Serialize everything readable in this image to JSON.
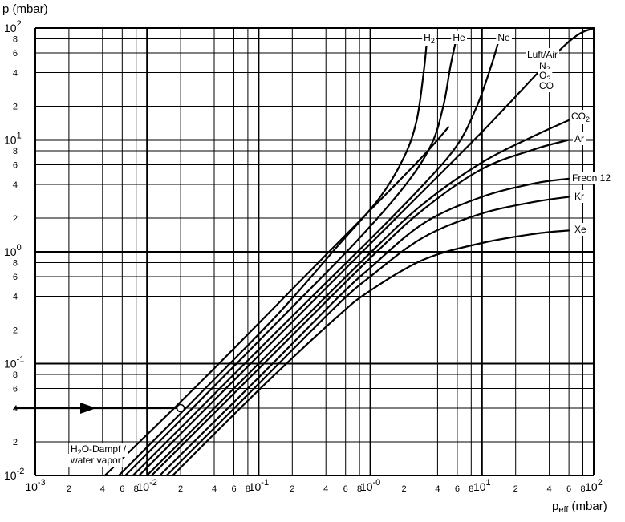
{
  "chart_data": {
    "type": "line",
    "x_scale": "log",
    "y_scale": "log",
    "xlim": [
      0.001,
      100
    ],
    "ylim": [
      0.01,
      100
    ],
    "grid": true,
    "ylabel": "p (mbar)",
    "xlabel_main": "p",
    "xlabel_sub": "eff",
    "xlabel_unit": " (mbar)",
    "y_decades": [
      {
        "value": 0.01,
        "base": "10",
        "exp": "-2"
      },
      {
        "value": 0.1,
        "base": "10",
        "exp": "-1"
      },
      {
        "value": 1,
        "base": "10",
        "exp": "0"
      },
      {
        "value": 10,
        "base": "10",
        "exp": "1"
      },
      {
        "value": 100,
        "base": "10",
        "exp": "2"
      }
    ],
    "y_minor": [
      {
        "mult": 2,
        "label": "2"
      },
      {
        "mult": 4,
        "label": "4"
      },
      {
        "mult": 6,
        "label": "6"
      },
      {
        "mult": 8,
        "label": "8"
      }
    ],
    "x_decades": [
      {
        "value": 0.001,
        "base": "10",
        "exp": "-3"
      },
      {
        "value": 0.01,
        "base": "10",
        "exp": "-2"
      },
      {
        "value": 0.1,
        "base": "10",
        "exp": "-1"
      },
      {
        "value": 1,
        "base": "10",
        "exp": "-0"
      },
      {
        "value": 10,
        "base": "10",
        "exp": "1"
      },
      {
        "value": 100,
        "base": "10",
        "exp": "2"
      }
    ],
    "x_minor": [
      {
        "mult": 2,
        "label": "2"
      },
      {
        "mult": 4,
        "label": "4"
      },
      {
        "mult": 6,
        "label": "6"
      },
      {
        "mult": 8,
        "label": "8"
      }
    ],
    "series": [
      {
        "name": "H2O-Dampf / water vapor",
        "points": [
          [
            0.0042,
            0.01
          ],
          [
            0.03,
            0.068
          ],
          [
            0.3,
            0.7
          ],
          [
            2.5,
            6
          ],
          [
            5,
            13
          ]
        ]
      },
      {
        "name": "H2",
        "points": [
          [
            0.0056,
            0.01
          ],
          [
            0.03,
            0.054
          ],
          [
            0.15,
            0.28
          ],
          [
            0.5,
            1.1
          ],
          [
            1.2,
            3
          ],
          [
            2,
            7
          ],
          [
            2.6,
            15
          ],
          [
            3,
            40
          ],
          [
            3.2,
            75
          ]
        ]
      },
      {
        "name": "He",
        "points": [
          [
            0.0064,
            0.01
          ],
          [
            0.03,
            0.047
          ],
          [
            0.15,
            0.24
          ],
          [
            0.7,
            1.15
          ],
          [
            2,
            3.8
          ],
          [
            3.5,
            9
          ],
          [
            4.5,
            20
          ],
          [
            5.2,
            45
          ],
          [
            5.8,
            75
          ]
        ]
      },
      {
        "name": "Ne",
        "points": [
          [
            0.0075,
            0.01
          ],
          [
            0.03,
            0.04
          ],
          [
            0.15,
            0.2
          ],
          [
            1,
            1.3
          ],
          [
            3,
            4
          ],
          [
            6,
            9
          ],
          [
            9,
            20
          ],
          [
            12,
            45
          ],
          [
            14,
            75
          ]
        ]
      },
      {
        "name": "Luft/Air N2 O2 CO",
        "points": [
          [
            0.0085,
            0.01
          ],
          [
            0.1,
            0.118
          ],
          [
            1,
            1.18
          ],
          [
            10,
            11.8
          ],
          [
            55,
            70
          ],
          [
            100,
            100
          ]
        ]
      },
      {
        "name": "CO2",
        "points": [
          [
            0.01,
            0.01
          ],
          [
            0.1,
            0.1
          ],
          [
            1,
            0.98
          ],
          [
            3,
            2.7
          ],
          [
            10,
            6.3
          ],
          [
            30,
            11
          ],
          [
            60,
            15
          ]
        ]
      },
      {
        "name": "Ar",
        "points": [
          [
            0.011,
            0.01
          ],
          [
            0.1,
            0.09
          ],
          [
            1,
            0.88
          ],
          [
            3,
            2.4
          ],
          [
            10,
            5.5
          ],
          [
            30,
            8.3
          ],
          [
            60,
            10
          ]
        ]
      },
      {
        "name": "Freon 12",
        "points": [
          [
            0.013,
            0.01
          ],
          [
            0.1,
            0.075
          ],
          [
            0.5,
            0.38
          ],
          [
            1,
            0.72
          ],
          [
            3,
            1.8
          ],
          [
            10,
            3.1
          ],
          [
            30,
            4.1
          ],
          [
            60,
            4.5
          ]
        ]
      },
      {
        "name": "Kr",
        "points": [
          [
            0.015,
            0.01
          ],
          [
            0.1,
            0.066
          ],
          [
            0.5,
            0.33
          ],
          [
            1,
            0.6
          ],
          [
            3,
            1.35
          ],
          [
            10,
            2.2
          ],
          [
            30,
            2.8
          ],
          [
            60,
            3.1
          ]
        ]
      },
      {
        "name": "Xe",
        "points": [
          [
            0.017,
            0.01
          ],
          [
            0.1,
            0.058
          ],
          [
            0.5,
            0.26
          ],
          [
            1,
            0.45
          ],
          [
            3,
            0.85
          ],
          [
            10,
            1.2
          ],
          [
            30,
            1.45
          ],
          [
            60,
            1.55
          ]
        ]
      }
    ],
    "curve_labels": [
      {
        "id": "h2",
        "base": "H",
        "sub": "2"
      },
      {
        "id": "he",
        "base": "He"
      },
      {
        "id": "ne",
        "base": "Ne"
      },
      {
        "id": "luft",
        "base": "Luft/Air"
      },
      {
        "id": "n2",
        "base": "N",
        "sub": "2"
      },
      {
        "id": "o2",
        "base": "O",
        "sub": "2"
      },
      {
        "id": "co",
        "base": "CO"
      },
      {
        "id": "co2",
        "base": "CO",
        "sub": "2"
      },
      {
        "id": "ar",
        "base": "Ar"
      },
      {
        "id": "freon",
        "base": "Freon 12"
      },
      {
        "id": "kr",
        "base": "Kr"
      },
      {
        "id": "xe",
        "base": "Xe"
      },
      {
        "id": "h2o_line1",
        "base": "H",
        "sub": "2",
        "tail": "O-Dampf /"
      },
      {
        "id": "h2o_line2",
        "base": "water vapor"
      }
    ],
    "example": {
      "x": 0.02,
      "y": 0.04
    }
  }
}
